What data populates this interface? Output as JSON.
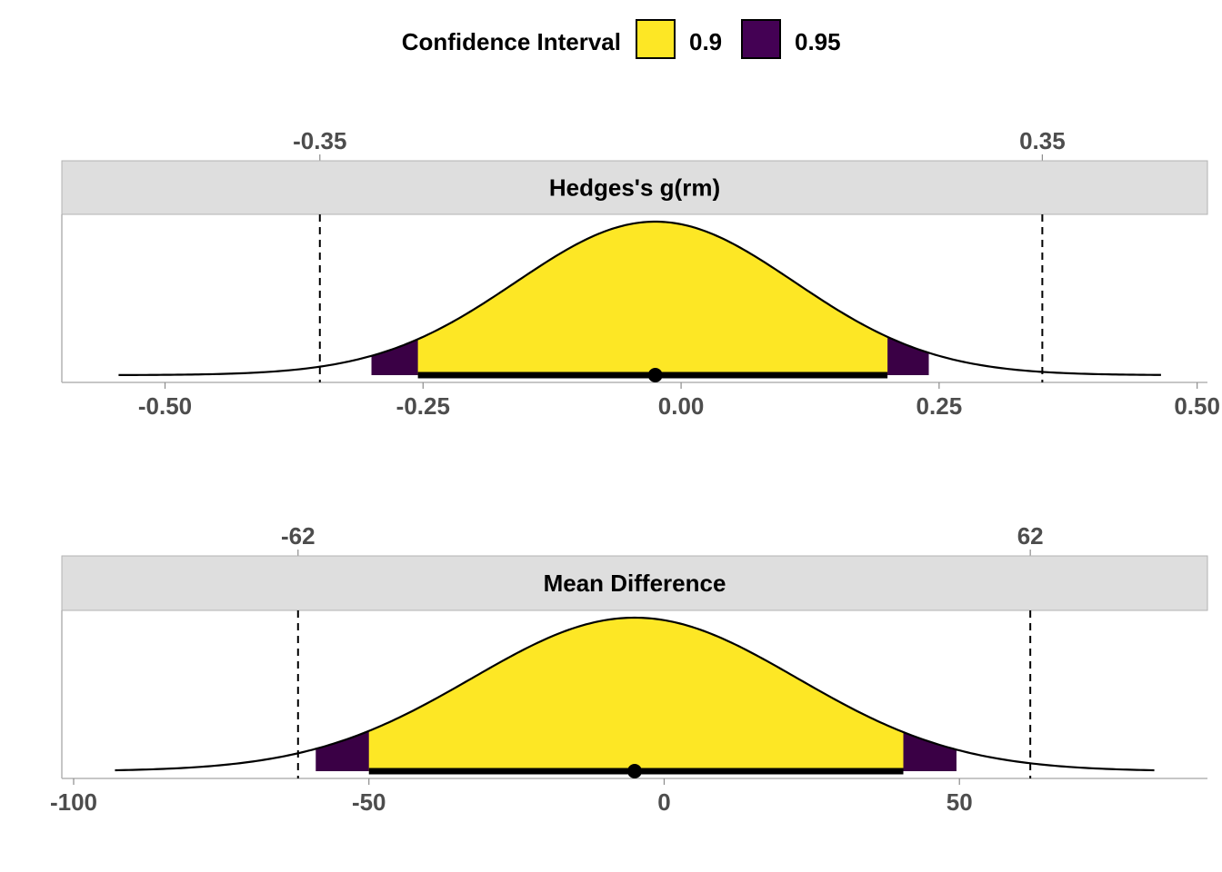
{
  "legend": {
    "title": "Confidence Interval",
    "items": [
      {
        "label": "0.9",
        "color": "#FDE725"
      },
      {
        "label": "0.95",
        "color": "#440154"
      }
    ]
  },
  "colors": {
    "ci90": "#FDE725",
    "ci95": "#3A0045",
    "strip": "#DEDEDE",
    "axis_text": "#4D4D4D",
    "curve": "#000000"
  },
  "chart_data": [
    {
      "type": "area",
      "panel": "Hedges's g(rm)",
      "title": "Hedges's g(rm)",
      "xlim": [
        -0.6,
        0.51
      ],
      "x_ticks": [
        "-0.50",
        "-0.25",
        "0.00",
        "0.25",
        "0.50"
      ],
      "x_tick_values": [
        -0.5,
        -0.25,
        0.0,
        0.25,
        0.5
      ],
      "bounds": [
        -0.35,
        0.35
      ],
      "bound_labels": [
        "-0.35",
        "0.35"
      ],
      "estimate": -0.025,
      "sd": 0.135,
      "curve_range": [
        -0.545,
        0.465
      ],
      "ci_90": [
        -0.255,
        0.2
      ],
      "ci_95": [
        -0.3,
        0.24
      ]
    },
    {
      "type": "area",
      "panel": "Mean Difference",
      "title": "Mean Difference",
      "xlim": [
        -102,
        92
      ],
      "x_ticks": [
        "-100",
        "-50",
        "0",
        "50"
      ],
      "x_tick_values": [
        -100,
        -50,
        0,
        50
      ],
      "bounds": [
        -62,
        62
      ],
      "bound_labels": [
        "-62",
        "62"
      ],
      "estimate": -5,
      "sd": 27.5,
      "curve_range": [
        -93,
        83
      ],
      "ci_90": [
        -50,
        40.5
      ],
      "ci_95": [
        -59,
        49.5
      ]
    }
  ]
}
